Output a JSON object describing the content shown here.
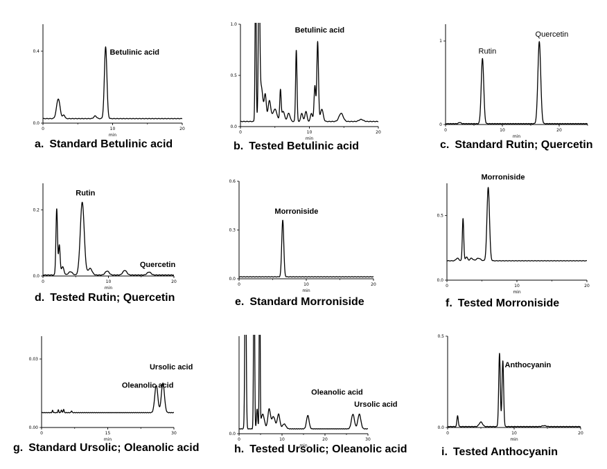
{
  "chart_data": [
    {
      "type": "line",
      "caption_prefix": "a.",
      "caption": "Standard Betulinic acid",
      "xlabel": "min",
      "xlim": [
        0,
        20
      ],
      "ylim": [
        0,
        0.55
      ],
      "xticks": [
        0,
        10,
        20
      ],
      "yticks": [
        0.0,
        0.4
      ],
      "ytick_labels": [
        "0.0",
        "0.4"
      ],
      "baseline": 0.025,
      "peaks": [
        {
          "x": 2.2,
          "h": 0.11,
          "w": 0.25
        },
        {
          "x": 3.0,
          "h": 0.02,
          "w": 0.15
        },
        {
          "x": 7.5,
          "h": 0.015,
          "w": 0.2
        },
        {
          "x": 9.0,
          "h": 0.4,
          "w": 0.18
        }
      ],
      "annotations": [
        {
          "text": "Betulinic acid",
          "x": 9.6,
          "y": 0.38,
          "bold": true
        }
      ]
    },
    {
      "type": "line",
      "caption_prefix": "b.",
      "caption": "Tested Betulinic acid",
      "xlabel": "min",
      "xlim": [
        0,
        20
      ],
      "ylim": [
        0,
        1.0
      ],
      "xticks": [
        0,
        10,
        20
      ],
      "yticks": [
        0.0,
        0.5,
        1.0
      ],
      "ytick_labels": [
        "0.0",
        "0.5",
        "1.0"
      ],
      "baseline": 0.05,
      "peaks": [
        {
          "x": 2.2,
          "h": 1.5,
          "w": 0.08
        },
        {
          "x": 2.7,
          "h": 1.5,
          "w": 0.1
        },
        {
          "x": 3.0,
          "h": 0.35,
          "w": 0.25
        },
        {
          "x": 3.6,
          "h": 0.25,
          "w": 0.15
        },
        {
          "x": 4.2,
          "h": 0.2,
          "w": 0.2
        },
        {
          "x": 5.0,
          "h": 0.12,
          "w": 0.3
        },
        {
          "x": 5.8,
          "h": 0.3,
          "w": 0.1
        },
        {
          "x": 6.2,
          "h": 0.1,
          "w": 0.2
        },
        {
          "x": 7.0,
          "h": 0.08,
          "w": 0.2
        },
        {
          "x": 8.1,
          "h": 0.7,
          "w": 0.1
        },
        {
          "x": 8.9,
          "h": 0.08,
          "w": 0.15
        },
        {
          "x": 9.5,
          "h": 0.1,
          "w": 0.15
        },
        {
          "x": 10.3,
          "h": 0.08,
          "w": 0.15
        },
        {
          "x": 10.8,
          "h": 0.35,
          "w": 0.12
        },
        {
          "x": 11.2,
          "h": 0.78,
          "w": 0.12
        },
        {
          "x": 11.8,
          "h": 0.12,
          "w": 0.2
        },
        {
          "x": 14.6,
          "h": 0.08,
          "w": 0.3
        },
        {
          "x": 17.5,
          "h": 0.02,
          "w": 0.3
        }
      ],
      "annotations": [
        {
          "text": "Betulinic acid",
          "x": 7.9,
          "y": 0.92,
          "bold": true
        }
      ]
    },
    {
      "type": "line",
      "caption_prefix": "c.",
      "caption": "Standard Rutin; Quercetin",
      "xlabel": "min",
      "xlim": [
        0,
        25
      ],
      "ylim": [
        0,
        1.2
      ],
      "xticks": [
        0,
        10,
        20
      ],
      "yticks": [
        0,
        1
      ],
      "ytick_labels": [
        "0",
        "1"
      ],
      "baseline": 0.01,
      "peaks": [
        {
          "x": 2.5,
          "h": 0.015,
          "w": 0.2
        },
        {
          "x": 6.5,
          "h": 0.78,
          "w": 0.22
        },
        {
          "x": 16.5,
          "h": 0.98,
          "w": 0.25
        }
      ],
      "annotations": [
        {
          "text": "Rutin",
          "x": 5.8,
          "y": 0.85,
          "bold": false
        },
        {
          "text": "Quercetin",
          "x": 15.8,
          "y": 1.05,
          "bold": false
        }
      ]
    },
    {
      "type": "line",
      "caption_prefix": "d.",
      "caption": "Tested Rutin; Quercetin",
      "xlabel": "min",
      "xlim": [
        0,
        20
      ],
      "ylim": [
        0,
        0.28
      ],
      "xticks": [
        0,
        10,
        20
      ],
      "yticks": [
        0.0,
        0.2
      ],
      "ytick_labels": [
        "0.0",
        "0.2"
      ],
      "baseline": 0.003,
      "peaks": [
        {
          "x": 2.1,
          "h": 0.2,
          "w": 0.12
        },
        {
          "x": 2.5,
          "h": 0.09,
          "w": 0.12
        },
        {
          "x": 3.0,
          "h": 0.025,
          "w": 0.2
        },
        {
          "x": 4.2,
          "h": 0.01,
          "w": 0.3
        },
        {
          "x": 6.0,
          "h": 0.22,
          "w": 0.3
        },
        {
          "x": 7.2,
          "h": 0.02,
          "w": 0.3
        },
        {
          "x": 9.8,
          "h": 0.012,
          "w": 0.3
        },
        {
          "x": 12.5,
          "h": 0.014,
          "w": 0.3
        },
        {
          "x": 16.2,
          "h": 0.009,
          "w": 0.3
        }
      ],
      "annotations": [
        {
          "text": "Rutin",
          "x": 5.0,
          "y": 0.243,
          "bold": true
        },
        {
          "text": "Quercetin",
          "x": 14.8,
          "y": 0.027,
          "bold": true
        }
      ]
    },
    {
      "type": "line",
      "caption_prefix": "e.",
      "caption": "Standard Morroniside",
      "xlabel": "min",
      "xlim": [
        0,
        20
      ],
      "ylim": [
        0,
        0.6
      ],
      "xticks": [
        0,
        10,
        20
      ],
      "yticks": [
        0.0,
        0.3,
        0.6
      ],
      "ytick_labels": [
        "0.0",
        "0.3",
        "0.6"
      ],
      "baseline": 0.012,
      "peaks": [
        {
          "x": 6.5,
          "h": 0.35,
          "w": 0.15
        }
      ],
      "annotations": [
        {
          "text": "Morroniside",
          "x": 5.3,
          "y": 0.4,
          "bold": true
        }
      ]
    },
    {
      "type": "line",
      "caption_prefix": "f.",
      "caption": "Tested Morroniside",
      "xlabel": "min",
      "xlim": [
        0,
        20
      ],
      "ylim": [
        0,
        0.75
      ],
      "xticks": [
        0,
        10,
        20
      ],
      "yticks": [
        0.0,
        0.5
      ],
      "ytick_labels": [
        "0.0",
        "0.5"
      ],
      "baseline": 0.15,
      "peaks": [
        {
          "x": 1.5,
          "h": 0.02,
          "w": 0.2
        },
        {
          "x": 2.3,
          "h": 0.33,
          "w": 0.1
        },
        {
          "x": 2.8,
          "h": 0.03,
          "w": 0.15
        },
        {
          "x": 3.5,
          "h": 0.02,
          "w": 0.2
        },
        {
          "x": 4.5,
          "h": 0.02,
          "w": 0.3
        },
        {
          "x": 5.9,
          "h": 0.57,
          "w": 0.18
        }
      ],
      "annotations": [
        {
          "text": "Morroniside",
          "x": 4.9,
          "y": 0.78,
          "bold": true
        }
      ]
    },
    {
      "type": "line",
      "caption_prefix": "g.",
      "caption": "Standard Ursolic; Oleanolic acid",
      "xlabel": "min",
      "xlim": [
        0,
        30
      ],
      "ylim": [
        0,
        0.04
      ],
      "xticks": [
        0,
        15,
        30
      ],
      "yticks": [
        0.0,
        0.03
      ],
      "ytick_labels": [
        "0.00",
        "0.03"
      ],
      "baseline": 0.0065,
      "peaks": [
        {
          "x": 2.5,
          "h": 0.001,
          "w": 0.1
        },
        {
          "x": 3.8,
          "h": 0.0012,
          "w": 0.1
        },
        {
          "x": 4.5,
          "h": 0.0012,
          "w": 0.1
        },
        {
          "x": 5.0,
          "h": 0.0015,
          "w": 0.1
        },
        {
          "x": 6.8,
          "h": 0.0008,
          "w": 0.1
        },
        {
          "x": 26.0,
          "h": 0.012,
          "w": 0.35
        },
        {
          "x": 27.5,
          "h": 0.013,
          "w": 0.35
        }
      ],
      "annotations": [
        {
          "text": "Oleanolic acid",
          "x": 18.2,
          "y": 0.0175,
          "bold": true
        },
        {
          "text": "Ursolic acid",
          "x": 24.5,
          "y": 0.0255,
          "bold": true
        }
      ]
    },
    {
      "type": "line",
      "caption_prefix": "h.",
      "caption": "Tested Ursolic; Oleanolic acid",
      "xlabel": "min",
      "xlim": [
        0,
        30
      ],
      "ylim": [
        0,
        0.4
      ],
      "xticks": [
        0,
        10,
        20,
        30
      ],
      "yticks": [
        0.0
      ],
      "ytick_labels": [
        "0.0"
      ],
      "baseline": 0.02,
      "peaks": [
        {
          "x": 1.5,
          "h": 0.8,
          "w": 0.15
        },
        {
          "x": 3.5,
          "h": 0.8,
          "w": 0.12
        },
        {
          "x": 4.2,
          "h": 0.08,
          "w": 0.15
        },
        {
          "x": 4.8,
          "h": 0.8,
          "w": 0.1
        },
        {
          "x": 5.5,
          "h": 0.06,
          "w": 0.4
        },
        {
          "x": 7.0,
          "h": 0.08,
          "w": 0.3
        },
        {
          "x": 8.0,
          "h": 0.05,
          "w": 0.4
        },
        {
          "x": 9.2,
          "h": 0.06,
          "w": 0.3
        },
        {
          "x": 10.5,
          "h": 0.02,
          "w": 0.4
        },
        {
          "x": 16.0,
          "h": 0.055,
          "w": 0.3
        },
        {
          "x": 26.5,
          "h": 0.06,
          "w": 0.35
        },
        {
          "x": 28.0,
          "h": 0.06,
          "w": 0.35
        }
      ],
      "annotations": [
        {
          "text": "Oleanolic acid",
          "x": 16.8,
          "y": 0.16,
          "bold": true
        },
        {
          "text": "Ursolic acid",
          "x": 26.8,
          "y": 0.11,
          "bold": true
        }
      ]
    },
    {
      "type": "line",
      "caption_prefix": "i.",
      "caption": "Tested Anthocyanin",
      "xlabel": "min",
      "xlim": [
        0,
        20
      ],
      "ylim": [
        0,
        0.5
      ],
      "xticks": [
        0,
        10,
        20
      ],
      "yticks": [
        0.0,
        0.5
      ],
      "ytick_labels": [
        "0.0",
        "0.5"
      ],
      "baseline": 0.005,
      "peaks": [
        {
          "x": 1.5,
          "h": 0.06,
          "w": 0.1
        },
        {
          "x": 5.0,
          "h": 0.025,
          "w": 0.25
        },
        {
          "x": 7.8,
          "h": 0.4,
          "w": 0.12
        },
        {
          "x": 8.3,
          "h": 0.36,
          "w": 0.12
        },
        {
          "x": 14.5,
          "h": 0.005,
          "w": 0.3
        }
      ],
      "annotations": [
        {
          "text": "Anthocyanin",
          "x": 8.6,
          "y": 0.33,
          "bold": true
        }
      ]
    }
  ]
}
